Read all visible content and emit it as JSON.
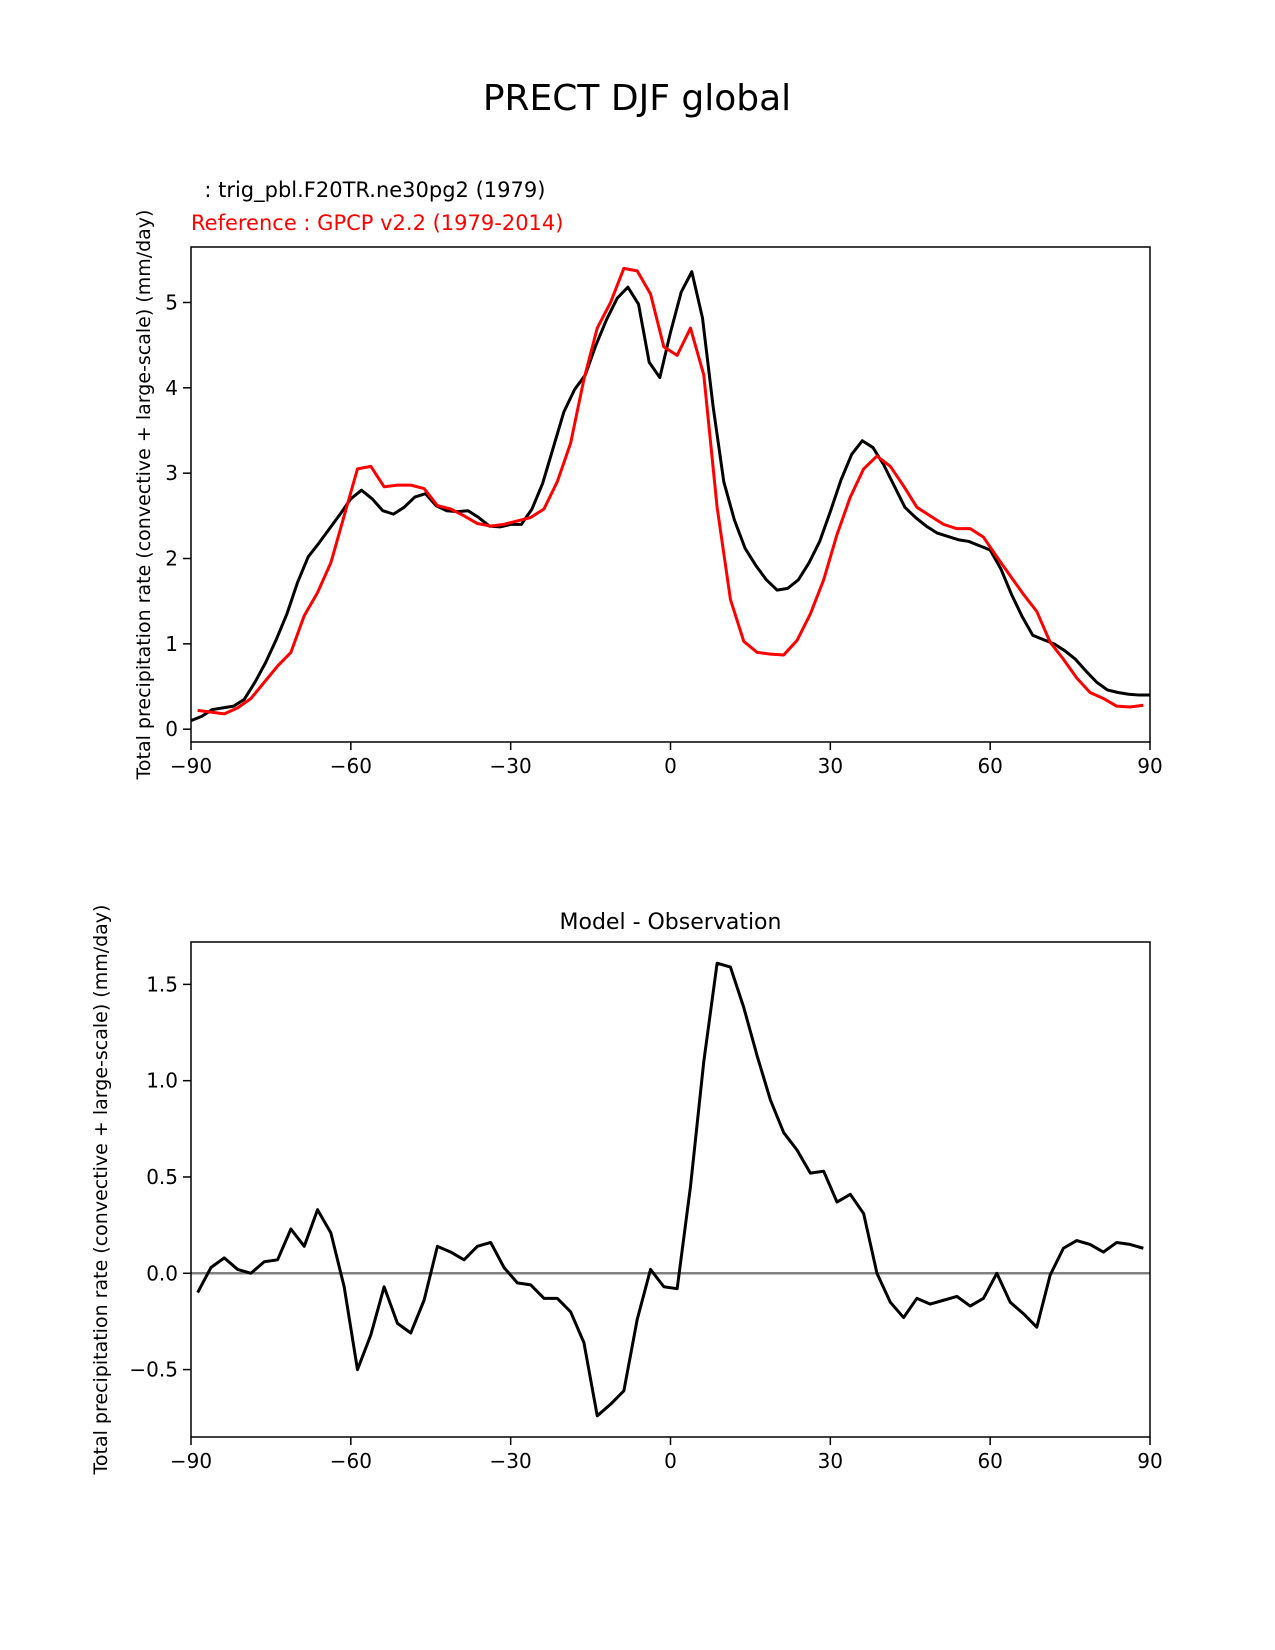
{
  "figure": {
    "title": "PRECT DJF global"
  },
  "colors": {
    "model": "#000000",
    "reference": "#ff0000",
    "zero_line": "#808080"
  },
  "chart_data": [
    {
      "type": "line",
      "legend": {
        "model_label": "  : trig_pbl.F20TR.ne30pg2 (1979)",
        "reference_label": "Reference : GPCP v2.2 (1979-2014)",
        "placement": "top-left"
      },
      "xlabel": "",
      "ylabel": "Total precipitation rate (convective + large-scale) (mm/day)",
      "xlim": [
        -90,
        90
      ],
      "ylim": [
        -0.15,
        5.65
      ],
      "xticks": [
        -90,
        -60,
        -30,
        0,
        30,
        60,
        90
      ],
      "xtick_labels": [
        "−90",
        "−60",
        "−30",
        "0",
        "30",
        "60",
        "90"
      ],
      "yticks": [
        0,
        1,
        2,
        3,
        4,
        5
      ],
      "ytick_labels": [
        "0",
        "1",
        "2",
        "3",
        "4",
        "5"
      ],
      "series": [
        {
          "name": "model",
          "x": [
            -90,
            -88,
            -86,
            -84,
            -82,
            -80,
            -78,
            -76,
            -74,
            -72,
            -70,
            -68,
            -66,
            -64,
            -62,
            -60,
            -58,
            -56,
            -54,
            -52,
            -50,
            -48,
            -46,
            -44,
            -42,
            -40,
            -38,
            -36,
            -34,
            -32,
            -30,
            -28,
            -26,
            -24,
            -22,
            -20,
            -18,
            -16,
            -14,
            -12,
            -10,
            -8,
            -6,
            -4,
            -2,
            0,
            2,
            4,
            6,
            8,
            10,
            12,
            14,
            16,
            18,
            20,
            22,
            24,
            26,
            28,
            30,
            32,
            34,
            36,
            38,
            40,
            42,
            44,
            46,
            48,
            50,
            52,
            54,
            56,
            58,
            60,
            62,
            64,
            66,
            68,
            70,
            72,
            74,
            76,
            78,
            80,
            82,
            84,
            86,
            88,
            90
          ],
          "values": [
            0.1,
            0.15,
            0.23,
            0.25,
            0.27,
            0.35,
            0.55,
            0.78,
            1.05,
            1.35,
            1.72,
            2.02,
            2.18,
            2.35,
            2.52,
            2.7,
            2.8,
            2.7,
            2.56,
            2.52,
            2.6,
            2.72,
            2.76,
            2.62,
            2.56,
            2.55,
            2.56,
            2.48,
            2.38,
            2.37,
            2.4,
            2.4,
            2.58,
            2.88,
            3.3,
            3.72,
            3.98,
            4.15,
            4.5,
            4.8,
            5.05,
            5.18,
            4.98,
            4.3,
            4.12,
            4.65,
            5.12,
            5.36,
            4.82,
            3.78,
            2.9,
            2.45,
            2.12,
            1.92,
            1.75,
            1.63,
            1.65,
            1.75,
            1.95,
            2.2,
            2.55,
            2.92,
            3.22,
            3.38,
            3.3,
            3.1,
            2.85,
            2.6,
            2.48,
            2.38,
            2.3,
            2.26,
            2.22,
            2.2,
            2.15,
            2.1,
            1.88,
            1.58,
            1.32,
            1.1,
            1.05,
            1.0,
            0.92,
            0.82,
            0.68,
            0.55,
            0.46,
            0.43,
            0.41,
            0.4,
            0.4
          ]
        },
        {
          "name": "reference",
          "x": [
            -88.75,
            -86.25,
            -83.75,
            -81.25,
            -78.75,
            -76.25,
            -73.75,
            -71.25,
            -68.75,
            -66.25,
            -63.75,
            -61.25,
            -58.75,
            -56.25,
            -53.75,
            -51.25,
            -48.75,
            -46.25,
            -43.75,
            -41.25,
            -38.75,
            -36.25,
            -33.75,
            -31.25,
            -28.75,
            -26.25,
            -23.75,
            -21.25,
            -18.75,
            -16.25,
            -13.75,
            -11.25,
            -8.75,
            -6.25,
            -3.75,
            -1.25,
            1.25,
            3.75,
            6.25,
            8.75,
            11.25,
            13.75,
            16.25,
            18.75,
            21.25,
            23.75,
            26.25,
            28.75,
            31.25,
            33.75,
            36.25,
            38.75,
            41.25,
            43.75,
            46.25,
            48.75,
            51.25,
            53.75,
            56.25,
            58.75,
            61.25,
            63.75,
            66.25,
            68.75,
            71.25,
            73.75,
            76.25,
            78.75,
            81.25,
            83.75,
            86.25,
            88.75
          ],
          "values": [
            0.22,
            0.2,
            0.18,
            0.25,
            0.36,
            0.55,
            0.74,
            0.9,
            1.33,
            1.6,
            1.95,
            2.5,
            3.05,
            3.08,
            2.84,
            2.86,
            2.86,
            2.82,
            2.62,
            2.58,
            2.5,
            2.41,
            2.38,
            2.4,
            2.44,
            2.48,
            2.58,
            2.9,
            3.35,
            4.1,
            4.7,
            5.0,
            5.4,
            5.37,
            5.1,
            4.48,
            4.38,
            4.7,
            4.15,
            2.6,
            1.52,
            1.03,
            0.9,
            0.88,
            0.87,
            1.04,
            1.35,
            1.75,
            2.28,
            2.72,
            3.05,
            3.2,
            3.08,
            2.85,
            2.6,
            2.5,
            2.4,
            2.35,
            2.35,
            2.25,
            2.02,
            1.8,
            1.58,
            1.38,
            1.02,
            0.82,
            0.6,
            0.43,
            0.36,
            0.27,
            0.26,
            0.28
          ]
        }
      ]
    },
    {
      "type": "line",
      "title": "Model - Observation",
      "xlabel": "",
      "ylabel": "Total precipitation rate (convective + large-scale) (mm/day)",
      "xlim": [
        -90,
        90
      ],
      "ylim": [
        -0.85,
        1.72
      ],
      "xticks": [
        -90,
        -60,
        -30,
        0,
        30,
        60,
        90
      ],
      "xtick_labels": [
        "−90",
        "−60",
        "−30",
        "0",
        "30",
        "60",
        "90"
      ],
      "yticks": [
        -0.5,
        0.0,
        0.5,
        1.0,
        1.5
      ],
      "ytick_labels": [
        "−0.5",
        "0.0",
        "0.5",
        "1.0",
        "1.5"
      ],
      "zero_line": 0,
      "series": [
        {
          "name": "difference",
          "x": [
            -88.75,
            -86.25,
            -83.75,
            -81.25,
            -78.75,
            -76.25,
            -73.75,
            -71.25,
            -68.75,
            -66.25,
            -63.75,
            -61.25,
            -58.75,
            -56.25,
            -53.75,
            -51.25,
            -48.75,
            -46.25,
            -43.75,
            -41.25,
            -38.75,
            -36.25,
            -33.75,
            -31.25,
            -28.75,
            -26.25,
            -23.75,
            -21.25,
            -18.75,
            -16.25,
            -13.75,
            -11.25,
            -8.75,
            -6.25,
            -3.75,
            -1.25,
            1.25,
            3.75,
            6.25,
            8.75,
            11.25,
            13.75,
            16.25,
            18.75,
            21.25,
            23.75,
            26.25,
            28.75,
            31.25,
            33.75,
            36.25,
            38.75,
            41.25,
            43.75,
            46.25,
            48.75,
            51.25,
            53.75,
            56.25,
            58.75,
            61.25,
            63.75,
            66.25,
            68.75,
            71.25,
            73.75,
            76.25,
            78.75,
            81.25,
            83.75,
            86.25,
            88.75
          ],
          "values": [
            -0.1,
            0.03,
            0.08,
            0.02,
            0.0,
            0.06,
            0.07,
            0.23,
            0.14,
            0.33,
            0.21,
            -0.07,
            -0.5,
            -0.32,
            -0.07,
            -0.26,
            -0.31,
            -0.14,
            0.14,
            0.11,
            0.07,
            0.14,
            0.16,
            0.03,
            -0.05,
            -0.06,
            -0.13,
            -0.13,
            -0.2,
            -0.36,
            -0.74,
            -0.68,
            -0.61,
            -0.24,
            0.02,
            -0.07,
            -0.08,
            0.45,
            1.1,
            1.61,
            1.59,
            1.38,
            1.13,
            0.9,
            0.73,
            0.64,
            0.52,
            0.53,
            0.37,
            0.41,
            0.31,
            0.0,
            -0.15,
            -0.23,
            -0.13,
            -0.16,
            -0.14,
            -0.12,
            -0.17,
            -0.13,
            0.0,
            -0.15,
            -0.21,
            -0.28,
            -0.01,
            0.13,
            0.17,
            0.15,
            0.11,
            0.16,
            0.15,
            0.13
          ]
        }
      ]
    }
  ]
}
